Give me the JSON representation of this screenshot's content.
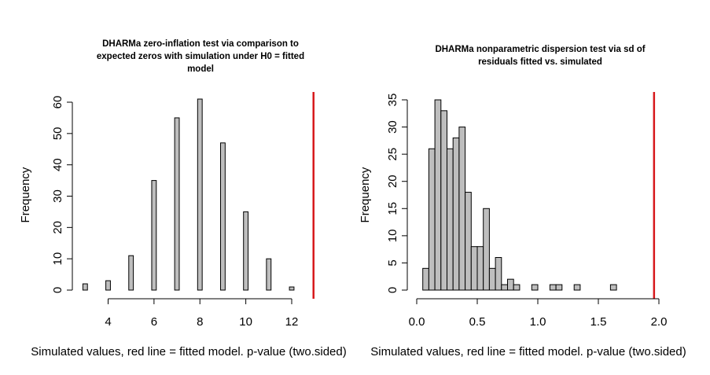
{
  "chart_data": [
    {
      "type": "bar",
      "title_lines": [
        "DHARMa zero-inflation test via comparison to",
        "expected zeros with simulation under H0 = fitted",
        "model"
      ],
      "xlabel": "Simulated values, red line = fitted model. p-value (two.sided)",
      "ylabel": "Frequency",
      "xlim": [
        3,
        13
      ],
      "ylim": [
        0,
        60
      ],
      "xticks": [
        4,
        6,
        8,
        10,
        12
      ],
      "yticks": [
        0,
        10,
        20,
        30,
        40,
        50,
        60
      ],
      "bar_width": 0.2,
      "bars": [
        {
          "x": 3,
          "value": 2
        },
        {
          "x": 4,
          "value": 3
        },
        {
          "x": 5,
          "value": 11
        },
        {
          "x": 6,
          "value": 35
        },
        {
          "x": 7,
          "value": 55
        },
        {
          "x": 8,
          "value": 61
        },
        {
          "x": 9,
          "value": 47
        },
        {
          "x": 10,
          "value": 25
        },
        {
          "x": 11,
          "value": 10
        },
        {
          "x": 12,
          "value": 1
        }
      ],
      "red_line_x": 12.95,
      "line_color": "#d7191c"
    },
    {
      "type": "bar",
      "title_lines": [
        "DHARMa nonparametric dispersion test via sd of",
        "residuals fitted vs. simulated"
      ],
      "xlabel": "Simulated values, red line = fitted model. p-value (two.sided)",
      "ylabel": "Frequency",
      "xlim": [
        0,
        2
      ],
      "ylim": [
        0,
        35
      ],
      "xticks": [
        0.0,
        0.5,
        1.0,
        1.5,
        2.0
      ],
      "xtick_labels": [
        "0.0",
        "0.5",
        "1.0",
        "1.5",
        "2.0"
      ],
      "yticks": [
        0,
        5,
        10,
        15,
        20,
        25,
        30,
        35
      ],
      "bin_width": 0.05,
      "bins_start": 0.05,
      "values": [
        4,
        26,
        35,
        33,
        26,
        28,
        30,
        18,
        8,
        8,
        15,
        4,
        6,
        1,
        2,
        1,
        0,
        0,
        1,
        0,
        0,
        1,
        1,
        0,
        0,
        1,
        0,
        0,
        0,
        0,
        0,
        1
      ],
      "red_line_x": 1.96,
      "line_color": "#d7191c"
    }
  ]
}
